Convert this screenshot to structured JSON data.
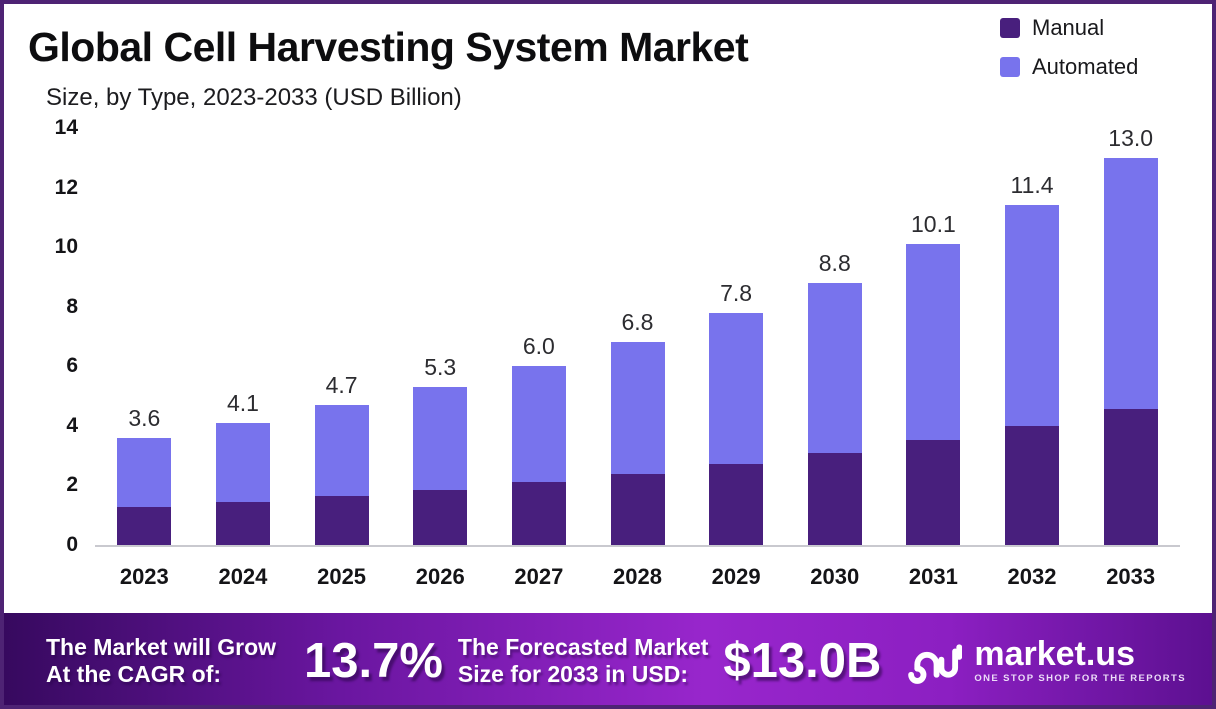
{
  "header": {
    "title": "Global Cell Harvesting System Market",
    "subtitle": "Size, by Type, 2023-2033 (USD Billion)"
  },
  "legend": [
    {
      "label": "Manual",
      "color": "#481F7D"
    },
    {
      "label": "Automated",
      "color": "#7873ED"
    }
  ],
  "chart_data": {
    "type": "bar",
    "stacked": true,
    "title": "Global Cell Harvesting System Market Size, by Type, 2023-2033 (USD Billion)",
    "categories": [
      "2023",
      "2024",
      "2025",
      "2026",
      "2027",
      "2028",
      "2029",
      "2030",
      "2031",
      "2032",
      "2033"
    ],
    "series": [
      {
        "name": "Manual",
        "color": "#481F7D",
        "values": [
          1.26,
          1.44,
          1.65,
          1.86,
          2.1,
          2.38,
          2.73,
          3.08,
          3.54,
          3.99,
          4.55
        ]
      },
      {
        "name": "Automated",
        "color": "#7873ED",
        "values": [
          2.34,
          2.66,
          3.05,
          3.44,
          3.9,
          4.42,
          5.07,
          5.72,
          6.56,
          7.41,
          8.45
        ]
      }
    ],
    "total_labels": [
      "3.6",
      "4.1",
      "4.7",
      "5.3",
      "6.0",
      "6.8",
      "7.8",
      "8.8",
      "10.1",
      "11.4",
      "13.0"
    ],
    "xlabel": "",
    "ylabel": "",
    "y_ticks": [
      14,
      12,
      10,
      8,
      6,
      4,
      2,
      0
    ],
    "ylim": [
      0,
      14
    ],
    "grid": false,
    "legend_position": "top-right"
  },
  "footer": {
    "cagr_line1": "The Market will Grow",
    "cagr_line2": "At the CAGR of:",
    "cagr_value": "13.7%",
    "forecast_line1": "The Forecasted Market",
    "forecast_line2": "Size for 2033 in USD:",
    "forecast_value": "$13.0B",
    "brand_name": "market.us",
    "brand_tagline": "ONE STOP SHOP FOR THE REPORTS"
  },
  "colors": {
    "manual": "#481F7D",
    "automated": "#7873ED",
    "frame_border": "#4E2374",
    "banner_gradient": [
      "#36095E",
      "#9826CC",
      "#5C1090"
    ],
    "baseline": "#c9c9cf"
  }
}
